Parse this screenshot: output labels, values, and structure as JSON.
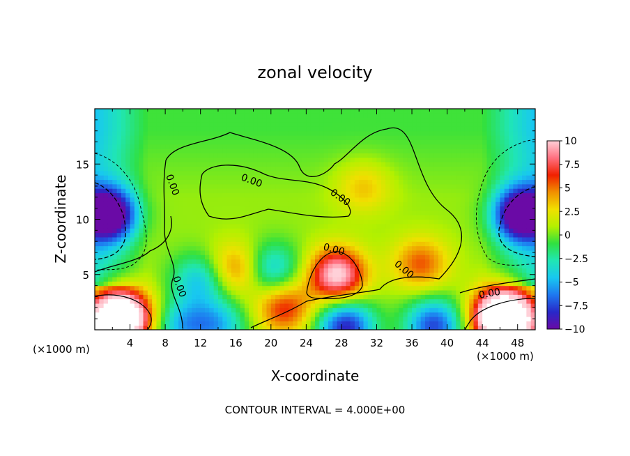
{
  "chart_data": {
    "type": "heatmap",
    "title": "zonal velocity",
    "xlabel": "X-coordinate",
    "ylabel": "Z-coordinate",
    "x_unit": "(×1000 m)",
    "x_unit_right": "(×1000 m)",
    "footer": "CONTOUR INTERVAL = 4.000E+00",
    "xlim": [
      0,
      50
    ],
    "ylim": [
      0,
      20
    ],
    "x_ticks": [
      "4",
      "8",
      "12",
      "16",
      "20",
      "24",
      "28",
      "32",
      "36",
      "40",
      "44",
      "48"
    ],
    "x_tick_values": [
      4,
      8,
      12,
      16,
      20,
      24,
      28,
      32,
      36,
      40,
      44,
      48
    ],
    "y_ticks": [
      "5",
      "10",
      "15"
    ],
    "y_tick_values": [
      5,
      10,
      15
    ],
    "colorbar": {
      "min": -10,
      "max": 10,
      "ticks": [
        "10",
        "7.5",
        "5",
        "2.5",
        "0",
        "−2.5",
        "−5",
        "−7.5",
        "−10"
      ],
      "tick_values": [
        10,
        7.5,
        5,
        2.5,
        0,
        -2.5,
        -5,
        -7.5,
        -10
      ],
      "colors": [
        "#6a0aa6",
        "#2828c8",
        "#1e78f0",
        "#18c8f0",
        "#20e6b4",
        "#30e040",
        "#b4f000",
        "#f0e000",
        "#f09000",
        "#f02000",
        "#ff7080",
        "#ffd0d8"
      ]
    },
    "contour_labels": [
      "0.00",
      "0.00",
      "0.00",
      "0.00",
      "0.00",
      "0.00",
      "0.00"
    ],
    "features": [
      {
        "x": 27.5,
        "z": 5,
        "value": 10,
        "kind": "max"
      },
      {
        "x": 3.5,
        "z": 1.5,
        "value": 8,
        "kind": "max"
      },
      {
        "x": 46,
        "z": 1.5,
        "value": 9,
        "kind": "max"
      },
      {
        "x": 1.5,
        "z": 10.5,
        "value": -12,
        "kind": "min"
      },
      {
        "x": 48.5,
        "z": 10.5,
        "value": -12,
        "kind": "min"
      },
      {
        "x": 20,
        "z": 5.5,
        "value": -5,
        "kind": "min"
      },
      {
        "x": 12,
        "z": 4.5,
        "value": -5,
        "kind": "min"
      },
      {
        "x": 37,
        "z": 6,
        "value": 5,
        "kind": "max"
      },
      {
        "x": 16,
        "z": 5.5,
        "value": 5,
        "kind": "max"
      },
      {
        "x": 28.5,
        "z": 0.3,
        "value": -9,
        "kind": "min"
      },
      {
        "x": 14,
        "z": 0.4,
        "value": -5,
        "kind": "min"
      },
      {
        "x": 10,
        "z": 0.4,
        "value": -5,
        "kind": "min"
      },
      {
        "x": 38.5,
        "z": 0.4,
        "value": -8,
        "kind": "min"
      },
      {
        "x": 2,
        "z": 0.6,
        "value": 14,
        "kind": "max"
      },
      {
        "x": 47,
        "z": 0.8,
        "value": 14,
        "kind": "max"
      },
      {
        "x": 21.5,
        "z": 2,
        "value": 6,
        "kind": "max"
      },
      {
        "x": 30.5,
        "z": 13,
        "value": 3,
        "kind": "max"
      }
    ]
  }
}
